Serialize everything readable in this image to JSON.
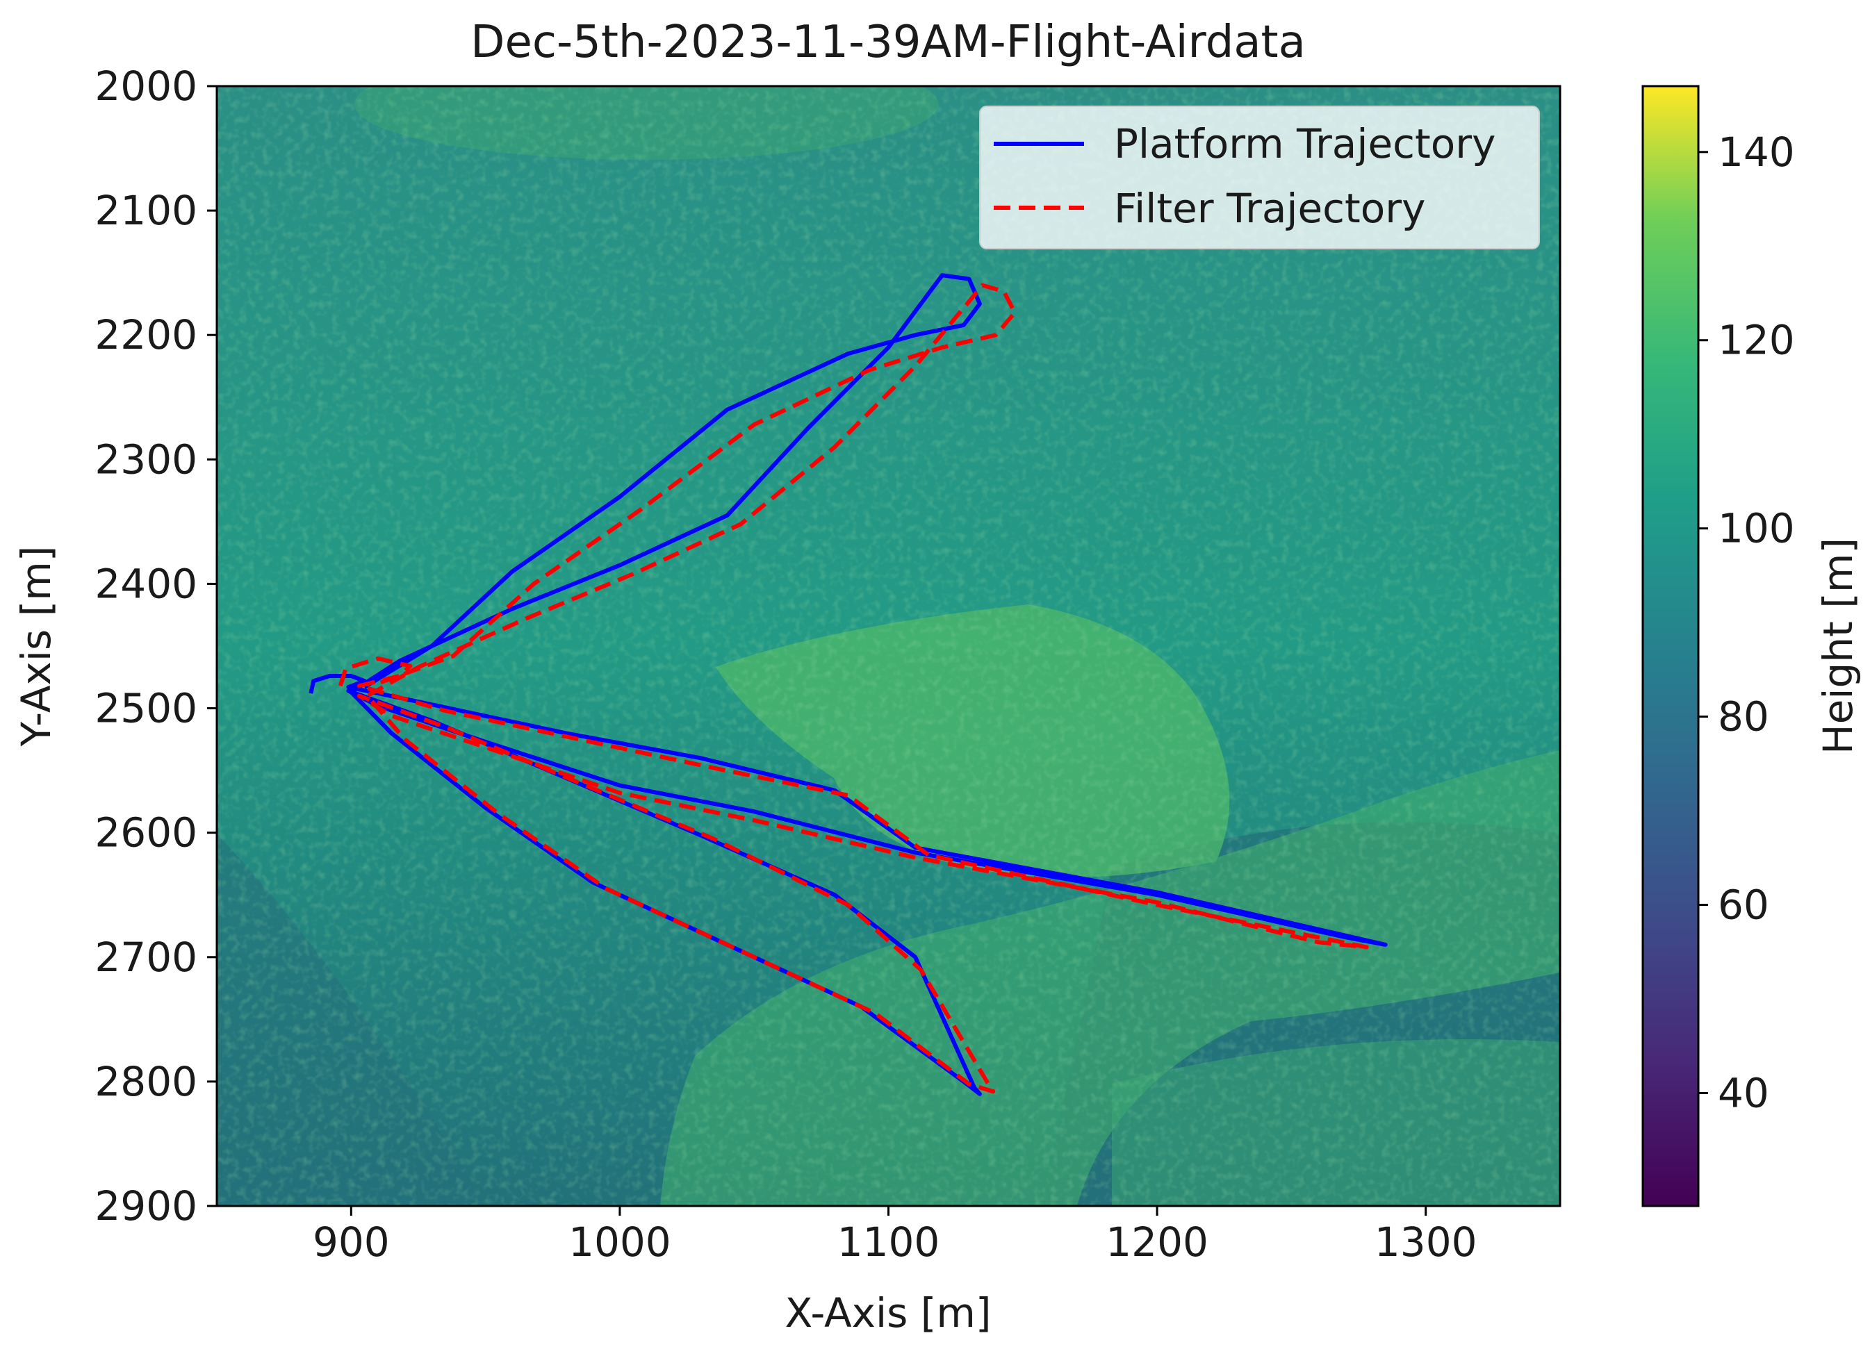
{
  "chart_data": {
    "type": "line",
    "title": "Dec-5th-2023-11-39AM-Flight-Airdata",
    "xlabel": "X-Axis [m]",
    "ylabel": "Y-Axis [m]",
    "xlim": [
      850,
      1350
    ],
    "ylim": [
      2900,
      2000
    ],
    "y_axis_inverted": true,
    "x_ticks": [
      900,
      1000,
      1100,
      1200,
      1300
    ],
    "y_ticks": [
      2000,
      2100,
      2200,
      2300,
      2400,
      2500,
      2600,
      2700,
      2800,
      2900
    ],
    "grid": false,
    "legend_position": "upper-right",
    "background": {
      "type": "heatmap",
      "colormap": "viridis",
      "description_values": "terrain height raster"
    },
    "colorbar": {
      "label": "Height [m]",
      "ticks": [
        40,
        60,
        80,
        100,
        120,
        140
      ],
      "range": [
        28,
        147
      ],
      "colormap": "viridis"
    },
    "series": [
      {
        "name": "Platform Trajectory",
        "style": "solid",
        "color": "#0000ff",
        "points": [
          [
            885,
            2488
          ],
          [
            886,
            2478
          ],
          [
            892,
            2474
          ],
          [
            900,
            2474
          ],
          [
            905,
            2478
          ],
          [
            899,
            2483
          ],
          [
            930,
            2497
          ],
          [
            980,
            2520
          ],
          [
            1030,
            2540
          ],
          [
            1080,
            2566
          ],
          [
            1110,
            2612
          ],
          [
            1200,
            2648
          ],
          [
            1285,
            2690
          ],
          [
            1270,
            2684
          ],
          [
            1200,
            2650
          ],
          [
            1110,
            2616
          ],
          [
            1050,
            2583
          ],
          [
            1000,
            2562
          ],
          [
            950,
            2527
          ],
          [
            910,
            2498
          ],
          [
            899,
            2486
          ],
          [
            930,
            2510
          ],
          [
            980,
            2556
          ],
          [
            1030,
            2602
          ],
          [
            1080,
            2650
          ],
          [
            1110,
            2700
          ],
          [
            1132,
            2805
          ],
          [
            1134,
            2810
          ],
          [
            1128,
            2800
          ],
          [
            1090,
            2740
          ],
          [
            1040,
            2690
          ],
          [
            990,
            2640
          ],
          [
            950,
            2580
          ],
          [
            915,
            2520
          ],
          [
            900,
            2487
          ],
          [
            918,
            2462
          ],
          [
            960,
            2420
          ],
          [
            1000,
            2385
          ],
          [
            1040,
            2345
          ],
          [
            1070,
            2275
          ],
          [
            1100,
            2210
          ],
          [
            1120,
            2152
          ],
          [
            1130,
            2155
          ],
          [
            1134,
            2175
          ],
          [
            1128,
            2192
          ],
          [
            1110,
            2200
          ],
          [
            1085,
            2215
          ],
          [
            1040,
            2260
          ],
          [
            1000,
            2330
          ],
          [
            960,
            2390
          ],
          [
            930,
            2450
          ],
          [
            905,
            2483
          ]
        ]
      },
      {
        "name": "Filter Trajectory",
        "style": "dashed",
        "color": "#ff0000",
        "points": [
          [
            896,
            2482
          ],
          [
            898,
            2468
          ],
          [
            910,
            2460
          ],
          [
            922,
            2466
          ],
          [
            918,
            2474
          ],
          [
            903,
            2482
          ],
          [
            935,
            2502
          ],
          [
            985,
            2525
          ],
          [
            1035,
            2548
          ],
          [
            1085,
            2570
          ],
          [
            1115,
            2618
          ],
          [
            1200,
            2658
          ],
          [
            1278,
            2692
          ],
          [
            1260,
            2688
          ],
          [
            1200,
            2656
          ],
          [
            1110,
            2620
          ],
          [
            1050,
            2590
          ],
          [
            1000,
            2568
          ],
          [
            955,
            2535
          ],
          [
            915,
            2506
          ],
          [
            903,
            2490
          ],
          [
            935,
            2515
          ],
          [
            985,
            2560
          ],
          [
            1035,
            2605
          ],
          [
            1085,
            2658
          ],
          [
            1112,
            2710
          ],
          [
            1138,
            2805
          ],
          [
            1139,
            2808
          ],
          [
            1130,
            2802
          ],
          [
            1095,
            2745
          ],
          [
            1045,
            2695
          ],
          [
            995,
            2645
          ],
          [
            955,
            2585
          ],
          [
            920,
            2525
          ],
          [
            906,
            2490
          ],
          [
            925,
            2467
          ],
          [
            965,
            2428
          ],
          [
            1005,
            2392
          ],
          [
            1045,
            2352
          ],
          [
            1080,
            2290
          ],
          [
            1110,
            2225
          ],
          [
            1135,
            2160
          ],
          [
            1143,
            2165
          ],
          [
            1147,
            2182
          ],
          [
            1140,
            2200
          ],
          [
            1120,
            2210
          ],
          [
            1093,
            2228
          ],
          [
            1050,
            2272
          ],
          [
            1008,
            2340
          ],
          [
            968,
            2400
          ],
          [
            938,
            2458
          ],
          [
            910,
            2480
          ]
        ]
      }
    ]
  }
}
